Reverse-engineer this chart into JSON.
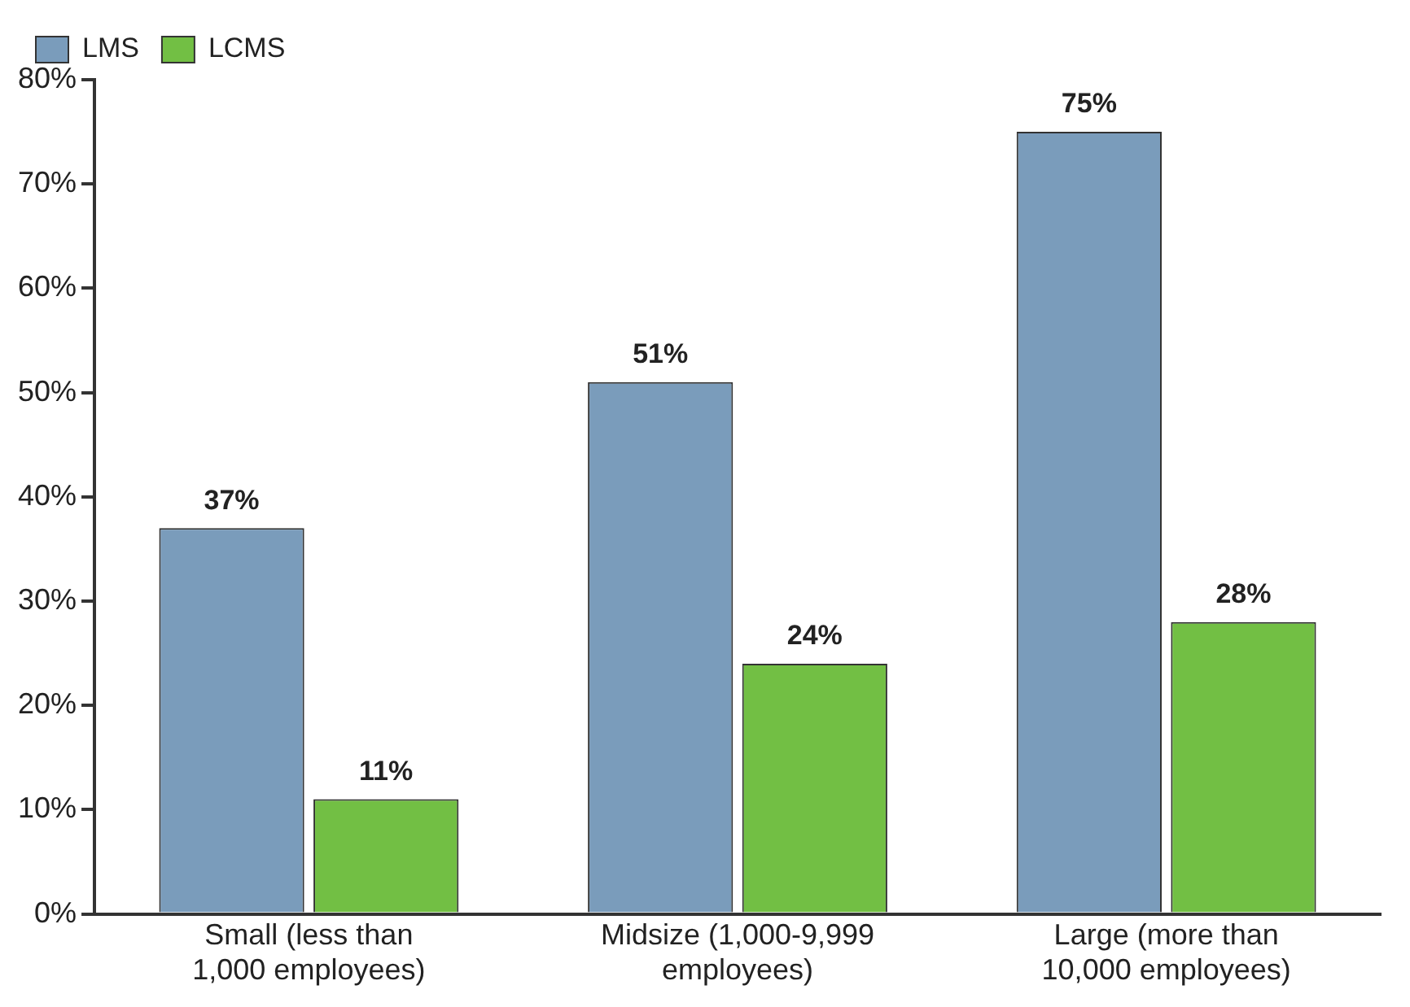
{
  "chart_data": {
    "type": "bar",
    "categories": [
      "Small (less than 1,000 employees)",
      "Midsize (1,000-9,999 employees)",
      "Large (more than 10,000 employees)"
    ],
    "series": [
      {
        "name": "LMS",
        "color": "#7a9cbb",
        "values": [
          37,
          51,
          75
        ],
        "value_labels": [
          "37%",
          "51%",
          "75%"
        ]
      },
      {
        "name": "LCMS",
        "color": "#72bf44",
        "values": [
          11,
          24,
          28
        ],
        "value_labels": [
          "11%",
          "24%",
          "28%"
        ]
      }
    ],
    "ylim": [
      0,
      80
    ],
    "yticks": [
      {
        "value": 0,
        "label": "0%"
      },
      {
        "value": 10,
        "label": "10%"
      },
      {
        "value": 20,
        "label": "20%"
      },
      {
        "value": 30,
        "label": "30%"
      },
      {
        "value": 40,
        "label": "40%"
      },
      {
        "value": 50,
        "label": "50%"
      },
      {
        "value": 60,
        "label": "60%"
      },
      {
        "value": 70,
        "label": "70%"
      },
      {
        "value": 80,
        "label": "80%"
      }
    ],
    "grid": false,
    "legend": "top left"
  }
}
